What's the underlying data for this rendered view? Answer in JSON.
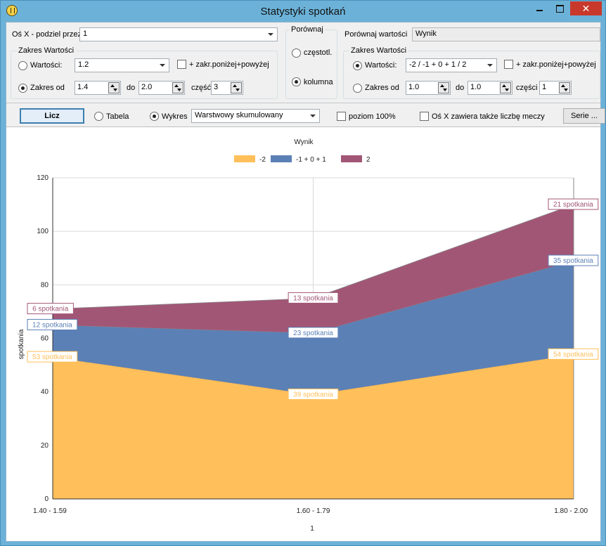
{
  "window": {
    "title": "Statystyki spotkań"
  },
  "top_left": {
    "axis_label": "Oś X - podziel przez",
    "axis_value": "1",
    "range_group_title": "Zakres Wartości",
    "values_label": "Wartości:",
    "values_value": "1.2",
    "extend_label": "+ zakr.poniżej+powyżej",
    "range_from_label": "Zakres od",
    "range_from": "1.4",
    "to_label": "do",
    "range_to": "2.0",
    "parts_label": "część",
    "parts": "3"
  },
  "compare_group": {
    "title": "Porównaj",
    "frequency_label": "częstotl.",
    "column_label": "kolumna"
  },
  "top_right": {
    "compare_values_label": "Porównaj wartości",
    "compare_values_value": "Wynik",
    "range_group_title": "Zakres Wartości",
    "values_label": "Wartości:",
    "values_value": "-2 / -1 + 0 + 1 / 2",
    "extend_label": "+ zakr.poniżej+powyżej",
    "range_from_label": "Zakres od",
    "range_from": "1.0",
    "to_label": "do",
    "range_to": "1.0",
    "parts_label": "części",
    "parts": "1"
  },
  "toolbar": {
    "calc_label": "Licz",
    "table_label": "Tabela",
    "chart_label": "Wykres",
    "chart_type_value": "Warstwowy skumulowany",
    "level100_label": "poziom 100%",
    "xaxis_count_label": "Oś X zawiera także liczbę meczy",
    "series_label": "Serie ..."
  },
  "chart_data": {
    "type": "area",
    "stacked": true,
    "title": "Wynik",
    "xlabel": "1",
    "ylabel": "spotkania",
    "categories": [
      "1.40 - 1.59",
      "1.60 - 1.79",
      "1.80 - 2.00"
    ],
    "ylim": [
      0,
      120
    ],
    "yticks": [
      "0",
      "20",
      "40",
      "60",
      "80",
      "100",
      "120"
    ],
    "grid": true,
    "legend_position": "top-center",
    "series": [
      {
        "name": "-2",
        "values": [
          53,
          39,
          54
        ],
        "color": "#ffbf5a",
        "labels": [
          "53 spotkania",
          "39 spotkania",
          "54 spotkania"
        ]
      },
      {
        "name": "-1 + 0 + 1",
        "values": [
          12,
          23,
          35
        ],
        "color": "#5b80b6",
        "labels": [
          "12 spotkania",
          "23 spotkania",
          "35 spotkania"
        ]
      },
      {
        "name": "2",
        "values": [
          6,
          13,
          21
        ],
        "color": "#a25676",
        "labels": [
          "6 spotkania",
          "13 spotkania",
          "21 spotkania"
        ]
      }
    ]
  }
}
